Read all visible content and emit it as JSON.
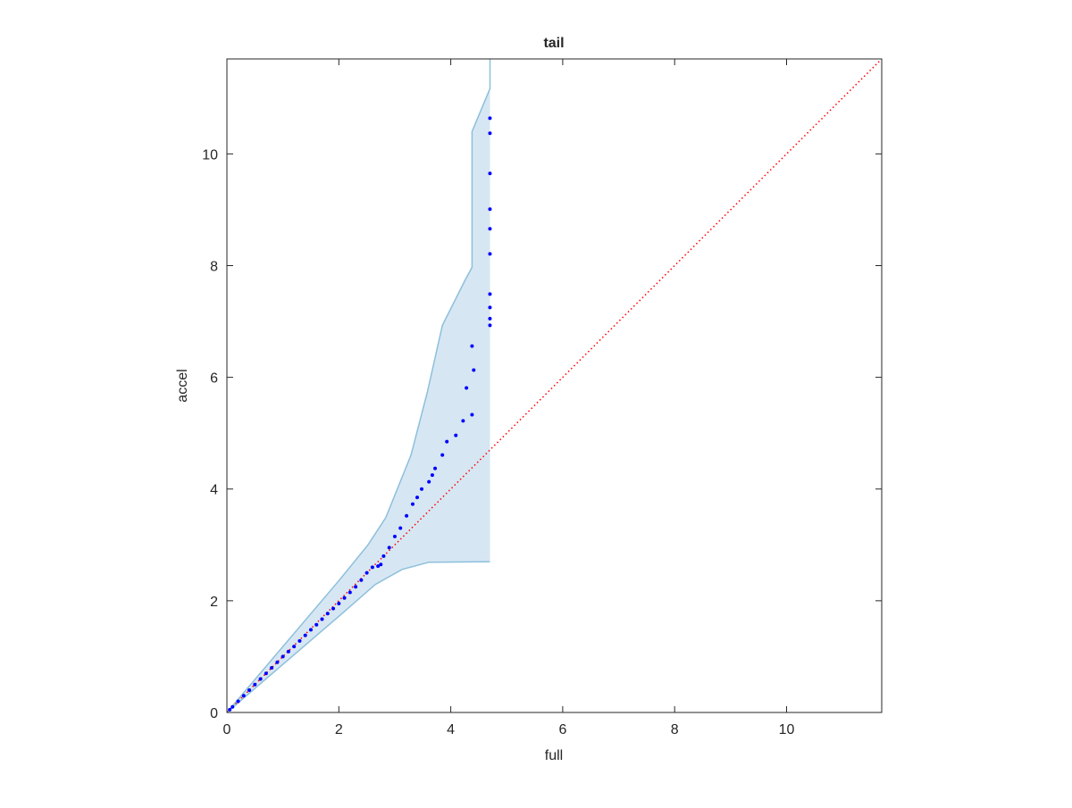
{
  "chart_data": {
    "type": "scatter",
    "title": "tail",
    "xlabel": "full",
    "ylabel": "accel",
    "xlim": [
      0,
      11.7
    ],
    "ylim": [
      0,
      11.7
    ],
    "xticks": [
      0,
      2,
      4,
      6,
      8,
      10
    ],
    "yticks": [
      0,
      2,
      4,
      6,
      8,
      10
    ],
    "points": {
      "color": "#0000ff",
      "x": [
        0.05,
        0.1,
        0.2,
        0.3,
        0.4,
        0.5,
        0.6,
        0.7,
        0.8,
        0.9,
        1.0,
        1.1,
        1.2,
        1.3,
        1.4,
        1.5,
        1.6,
        1.7,
        1.8,
        1.9,
        2.0,
        2.1,
        2.2,
        2.3,
        2.4,
        2.5,
        2.6,
        2.7,
        2.75,
        2.8,
        2.9,
        3.0,
        3.1,
        3.21,
        3.32,
        3.4,
        3.48,
        3.61,
        3.67,
        3.72,
        3.85,
        3.93,
        4.09,
        4.22,
        4.28,
        4.38,
        4.41,
        4.38,
        4.7,
        4.7,
        4.7,
        4.7,
        4.7,
        4.7,
        4.7,
        4.7,
        4.7,
        4.7
      ],
      "y": [
        0.05,
        0.1,
        0.2,
        0.3,
        0.4,
        0.5,
        0.6,
        0.7,
        0.8,
        0.9,
        1.0,
        1.09,
        1.18,
        1.28,
        1.38,
        1.48,
        1.57,
        1.67,
        1.77,
        1.86,
        1.95,
        2.05,
        2.15,
        2.25,
        2.37,
        2.5,
        2.6,
        2.62,
        2.65,
        2.8,
        2.95,
        3.15,
        3.3,
        3.52,
        3.73,
        3.85,
        4.0,
        4.13,
        4.25,
        4.37,
        4.61,
        4.85,
        4.96,
        5.22,
        5.81,
        5.33,
        6.13,
        6.56,
        6.93,
        7.05,
        7.25,
        7.49,
        8.21,
        8.66,
        9.01,
        9.65,
        10.37,
        10.64
      ]
    },
    "band": {
      "color": "#8dbfdc",
      "fill": "#d6e7f3",
      "upper": {
        "x": [
          0,
          2.01,
          2.52,
          2.84,
          3.29,
          3.58,
          3.85,
          4.25,
          4.38,
          4.38,
          4.7,
          4.7
        ],
        "y": [
          0,
          2.37,
          3.0,
          3.49,
          4.61,
          5.73,
          6.93,
          7.73,
          7.97,
          10.4,
          11.17,
          11.7
        ]
      },
      "lower": {
        "x": [
          0,
          2.01,
          2.65,
          3.13,
          3.61,
          4.7
        ],
        "y": [
          0,
          1.73,
          2.29,
          2.56,
          2.69,
          2.7
        ]
      }
    },
    "reference_line": {
      "color": "#ff0000",
      "x": [
        0,
        11.7
      ],
      "y": [
        0,
        11.7
      ]
    }
  }
}
